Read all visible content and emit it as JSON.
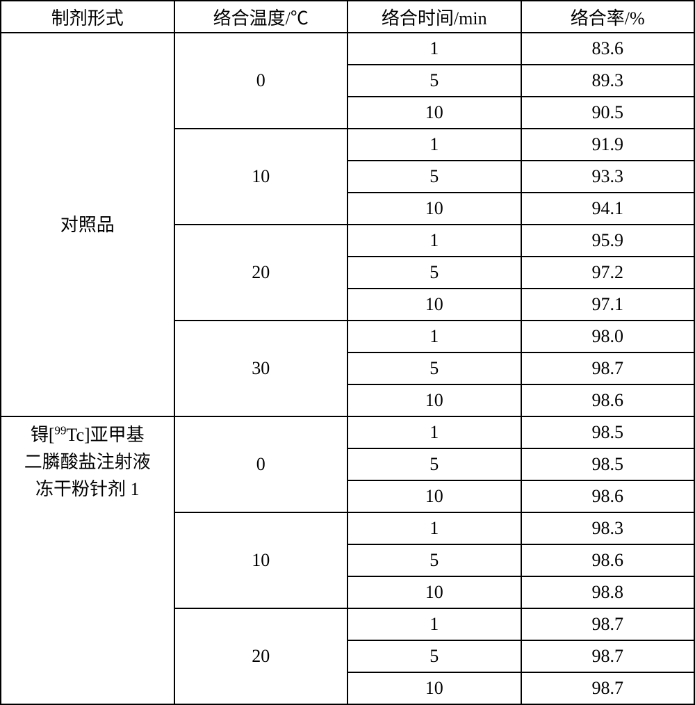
{
  "table": {
    "headers": {
      "form": "制剂形式",
      "temp": "络合温度/℃",
      "time": "络合时间/min",
      "rate": "络合率/%"
    },
    "font_size_pt": 20,
    "border_color": "#000000",
    "background_color": "#ffffff",
    "columns_width_pct": [
      25,
      25,
      25,
      25
    ],
    "group1": {
      "label": "对照品",
      "temps": [
        {
          "temp": "0",
          "rows": [
            {
              "time": "1",
              "rate": "83.6"
            },
            {
              "time": "5",
              "rate": "89.3"
            },
            {
              "time": "10",
              "rate": "90.5"
            }
          ]
        },
        {
          "temp": "10",
          "rows": [
            {
              "time": "1",
              "rate": "91.9"
            },
            {
              "time": "5",
              "rate": "93.3"
            },
            {
              "time": "10",
              "rate": "94.1"
            }
          ]
        },
        {
          "temp": "20",
          "rows": [
            {
              "time": "1",
              "rate": "95.9"
            },
            {
              "time": "5",
              "rate": "97.2"
            },
            {
              "time": "10",
              "rate": "97.1"
            }
          ]
        },
        {
          "temp": "30",
          "rows": [
            {
              "time": "1",
              "rate": "98.0"
            },
            {
              "time": "5",
              "rate": "98.7"
            },
            {
              "time": "10",
              "rate": "98.6"
            }
          ]
        }
      ]
    },
    "group2": {
      "label_html": "锝[<sup>99</sup>Tc]亚甲基<br>二膦酸盐注射液<br>冻干粉针剂 1",
      "label_plain": "锝[99Tc]亚甲基二膦酸盐注射液冻干粉针剂 1",
      "temps": [
        {
          "temp": "0",
          "rows": [
            {
              "time": "1",
              "rate": "98.5"
            },
            {
              "time": "5",
              "rate": "98.5"
            },
            {
              "time": "10",
              "rate": "98.6"
            }
          ]
        },
        {
          "temp": "10",
          "rows": [
            {
              "time": "1",
              "rate": "98.3"
            },
            {
              "time": "5",
              "rate": "98.6"
            },
            {
              "time": "10",
              "rate": "98.8"
            }
          ]
        },
        {
          "temp": "20",
          "rows": [
            {
              "time": "1",
              "rate": "98.7"
            },
            {
              "time": "5",
              "rate": "98.7"
            },
            {
              "time": "10",
              "rate": "98.7"
            }
          ]
        }
      ]
    }
  }
}
